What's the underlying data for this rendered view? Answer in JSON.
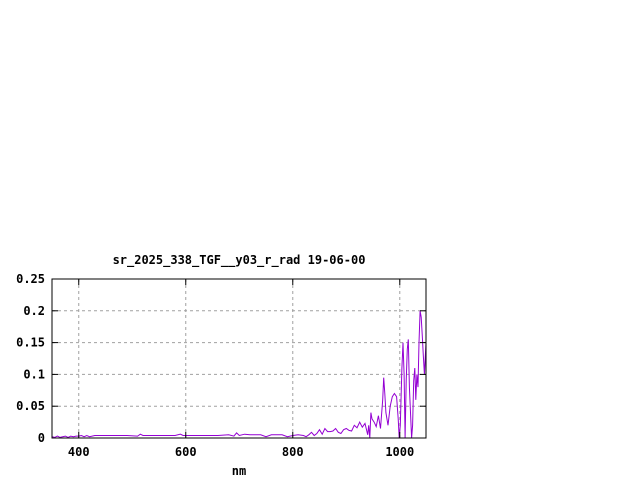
{
  "chart_data": {
    "type": "line",
    "title": "sr_2025_338_TGF__y03_r_rad 19-06-00",
    "xlabel": "nm",
    "ylabel": "",
    "xlim": [
      350,
      1049
    ],
    "ylim": [
      0,
      0.25
    ],
    "grid": true,
    "line_color": "#9400d3",
    "xticks": [
      400,
      600,
      800,
      1000
    ],
    "xtick_labels": [
      "400",
      "600",
      "800",
      "1000"
    ],
    "yticks": [
      0,
      0.05,
      0.1,
      0.15,
      0.2,
      0.25
    ],
    "ytick_labels": [
      "0",
      "0.05",
      "0.1",
      "0.15",
      "0.2",
      "0.25"
    ],
    "series": [
      {
        "x": [
          350,
          355,
          360,
          365,
          370,
          375,
          380,
          385,
          390,
          395,
          400,
          405,
          410,
          415,
          420,
          430,
          440,
          450,
          470,
          490,
          510,
          515,
          520,
          540,
          560,
          580,
          590,
          595,
          600,
          620,
          640,
          660,
          680,
          690,
          695,
          700,
          710,
          720,
          740,
          750,
          760,
          780,
          790,
          800,
          810,
          820,
          825,
          830,
          835,
          840,
          845,
          850,
          855,
          860,
          865,
          870,
          875,
          880,
          885,
          890,
          895,
          900,
          905,
          910,
          915,
          920,
          925,
          930,
          935,
          940,
          942,
          944,
          946,
          948,
          952,
          956,
          960,
          964,
          968,
          970,
          972,
          974,
          978,
          982,
          986,
          990,
          994,
          997,
          999,
          1001,
          1004,
          1006,
          1008,
          1010,
          1012,
          1014,
          1016,
          1018,
          1020,
          1022,
          1024,
          1026,
          1028,
          1030,
          1032,
          1034,
          1036,
          1038,
          1040,
          1042,
          1044,
          1046,
          1049
        ],
        "y": [
          0.002,
          0.001,
          0.003,
          0.001,
          0.002,
          0.003,
          0.001,
          0.003,
          0.002,
          0.003,
          0.003,
          0.004,
          0.002,
          0.004,
          0.002,
          0.004,
          0.004,
          0.004,
          0.004,
          0.004,
          0.003,
          0.006,
          0.004,
          0.004,
          0.004,
          0.004,
          0.006,
          0.004,
          0.004,
          0.004,
          0.004,
          0.004,
          0.005,
          0.003,
          0.008,
          0.004,
          0.006,
          0.005,
          0.005,
          0.002,
          0.005,
          0.005,
          0.002,
          0.004,
          0.005,
          0.004,
          0.002,
          0.005,
          0.009,
          0.004,
          0.007,
          0.013,
          0.006,
          0.015,
          0.01,
          0.01,
          0.011,
          0.015,
          0.009,
          0.007,
          0.013,
          0.015,
          0.012,
          0.011,
          0.02,
          0.016,
          0.025,
          0.017,
          0.023,
          0.005,
          0.02,
          0.0,
          0.04,
          0.03,
          0.025,
          0.018,
          0.035,
          0.015,
          0.06,
          0.095,
          0.07,
          0.04,
          0.02,
          0.05,
          0.065,
          0.07,
          0.065,
          0.03,
          0.0,
          0.02,
          0.11,
          0.15,
          0.1,
          0.0,
          0.09,
          0.14,
          0.155,
          0.08,
          0.04,
          0.0,
          0.02,
          0.09,
          0.11,
          0.06,
          0.1,
          0.08,
          0.15,
          0.2,
          0.19,
          0.16,
          0.13,
          0.1,
          0.15
        ]
      }
    ]
  }
}
